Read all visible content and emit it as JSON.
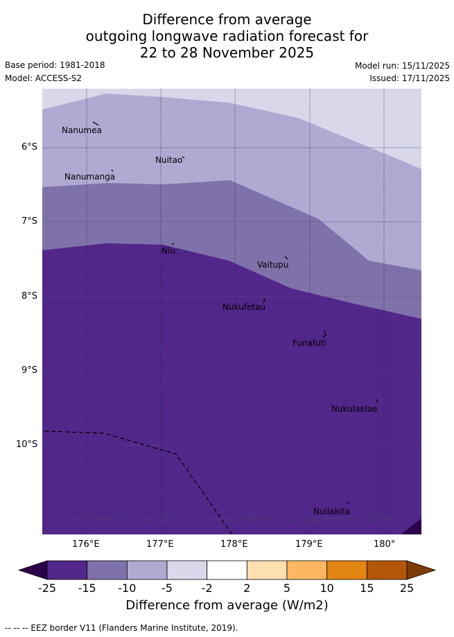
{
  "header": {
    "title_lines": [
      "Difference from average",
      "outgoing longwave radiation forecast for",
      "22 to 28 November 2025"
    ],
    "base_period": "Base period: 1981-2018",
    "model": "Model: ACCESS-S2",
    "model_run": "Model run: 15/11/2025",
    "issued": "Issued: 17/11/2025"
  },
  "map": {
    "lon_range_deg_e": [
      175.4,
      180.5
    ],
    "lat_range_deg_s": [
      5.4,
      11.3
    ],
    "lon_ticks": [
      "176°E",
      "177°E",
      "178°E",
      "179°E",
      "180°"
    ],
    "lat_ticks": [
      "6°S",
      "7°S",
      "8°S",
      "9°S",
      "10°S"
    ],
    "places": [
      {
        "name": "Nanumea"
      },
      {
        "name": "Nuitao"
      },
      {
        "name": "Nanumanga"
      },
      {
        "name": "Niu"
      },
      {
        "name": "Vaitupu"
      },
      {
        "name": "Nukufetau"
      },
      {
        "name": "Funafuti"
      },
      {
        "name": "Nukulaelae"
      },
      {
        "name": "Nuilakita"
      }
    ],
    "copyright": "© Commonwealth of Australia 2025, Bureau of Meteorology, supported by COSPPac"
  },
  "colorbar": {
    "levels": [
      "-25",
      "-15",
      "-10",
      "-5",
      "-2",
      "2",
      "5",
      "10",
      "15",
      "25"
    ],
    "colors": [
      "#52278a",
      "#7f72aa",
      "#b0aad2",
      "#d8d8ea",
      "#ffffff",
      "#fddfb2",
      "#fdb763",
      "#e38512",
      "#b25709"
    ],
    "extend_low_color": "#2d004b",
    "extend_high_color": "#7f3b08",
    "title": "Difference from average (W/m2)"
  },
  "footer": {
    "legend": "-- -- -- EEZ border V11 (Flanders Marine Institute, 2019)."
  }
}
